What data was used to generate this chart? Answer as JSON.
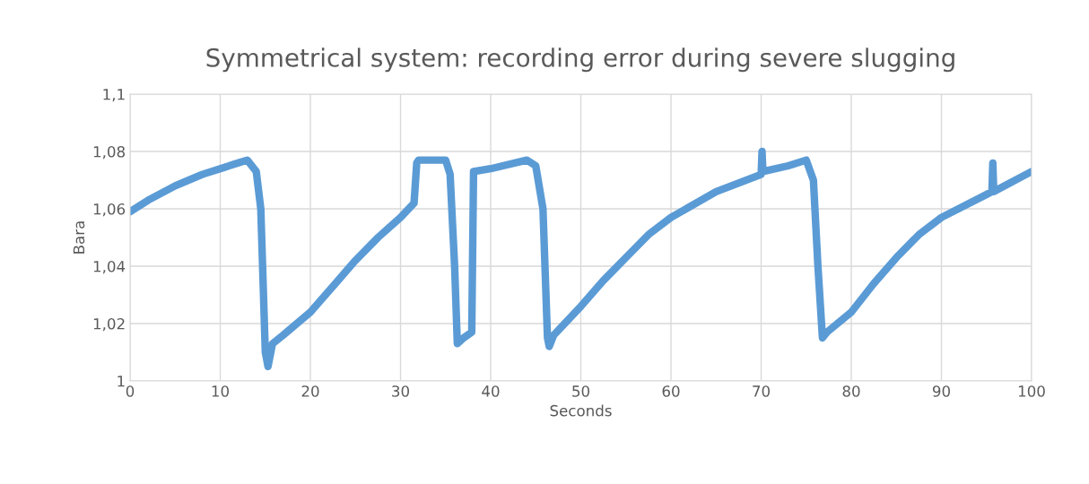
{
  "chart_data": {
    "type": "line",
    "title": "Symmetrical system: recording error during severe slugging",
    "xlabel": "Seconds",
    "ylabel": "Bara",
    "series": [
      {
        "color": "#5b9bd5",
        "x": [
          0,
          2,
          5,
          8,
          10,
          12,
          13,
          14,
          14.5,
          15,
          15.3,
          15.8,
          17,
          20,
          22.5,
          25,
          27.5,
          30,
          31.5,
          31.8,
          32,
          35,
          35.5,
          36,
          36.3,
          37,
          37.9,
          38.1,
          40,
          44,
          45,
          45.8,
          46.3,
          46.5,
          47,
          50,
          52.5,
          55,
          57.5,
          60,
          65,
          70,
          70.1,
          70.2,
          73,
          75,
          75.8,
          76.3,
          76.8,
          77.3,
          80,
          82.5,
          85,
          87.5,
          90,
          95,
          95.6,
          95.7,
          95.8,
          100
        ],
        "values": [
          1.059,
          1.063,
          1.068,
          1.072,
          1.074,
          1.076,
          1.077,
          1.073,
          1.06,
          1.01,
          1.005,
          1.013,
          1.016,
          1.024,
          1.033,
          1.042,
          1.05,
          1.057,
          1.062,
          1.076,
          1.077,
          1.077,
          1.072,
          1.04,
          1.013,
          1.015,
          1.017,
          1.073,
          1.074,
          1.077,
          1.075,
          1.06,
          1.015,
          1.012,
          1.016,
          1.026,
          1.035,
          1.043,
          1.051,
          1.057,
          1.066,
          1.072,
          1.08,
          1.073,
          1.075,
          1.077,
          1.07,
          1.04,
          1.015,
          1.017,
          1.024,
          1.034,
          1.043,
          1.051,
          1.057,
          1.065,
          1.066,
          1.076,
          1.066,
          1.073
        ]
      }
    ],
    "xlim": [
      0,
      100
    ],
    "xticks": [
      0,
      10,
      20,
      30,
      40,
      50,
      60,
      70,
      80,
      90,
      100
    ],
    "ylim": [
      1,
      1.1
    ],
    "yticks": [
      {
        "value": 1,
        "label": "1"
      },
      {
        "value": 1.02,
        "label": "1,02"
      },
      {
        "value": 1.04,
        "label": "1,04"
      },
      {
        "value": 1.06,
        "label": "1,06"
      },
      {
        "value": 1.08,
        "label": "1,08"
      },
      {
        "value": 1.1,
        "label": "1,1"
      }
    ],
    "grid": true
  }
}
